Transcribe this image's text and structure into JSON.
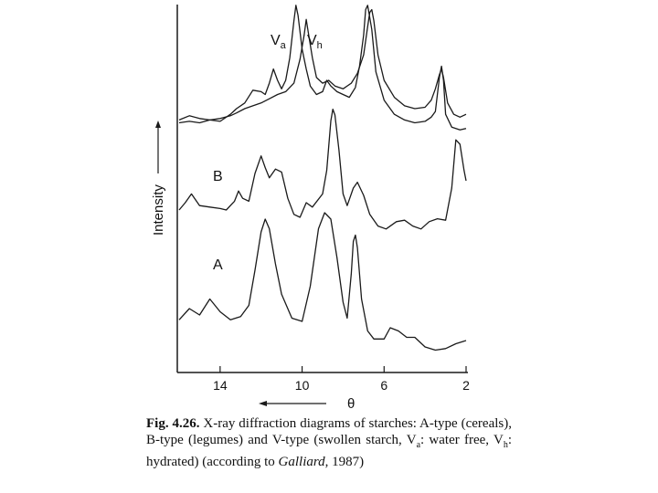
{
  "chart_data": {
    "type": "line",
    "ylabel": "Intensity",
    "xlabel": "θ",
    "x_direction": "decreasing to the right",
    "xlim": [
      16,
      2
    ],
    "x_ticks": [
      {
        "value": 14,
        "label": "14"
      },
      {
        "value": 10,
        "label": "10"
      },
      {
        "value": 6,
        "label": "6"
      },
      {
        "value": 2,
        "label": "2"
      }
    ],
    "panels": [
      {
        "label": "A",
        "series": [
          {
            "name": "A",
            "points": [
              [
                16,
                0.17
              ],
              [
                15.5,
                0.24
              ],
              [
                15.0,
                0.2
              ],
              [
                14.5,
                0.3
              ],
              [
                14.0,
                0.22
              ],
              [
                13.5,
                0.17
              ],
              [
                13.0,
                0.19
              ],
              [
                12.6,
                0.26
              ],
              [
                12.3,
                0.48
              ],
              [
                12.0,
                0.72
              ],
              [
                11.8,
                0.8
              ],
              [
                11.6,
                0.74
              ],
              [
                11.3,
                0.52
              ],
              [
                11.0,
                0.33
              ],
              [
                10.5,
                0.18
              ],
              [
                10.0,
                0.16
              ],
              [
                9.6,
                0.38
              ],
              [
                9.2,
                0.74
              ],
              [
                8.9,
                0.84
              ],
              [
                8.6,
                0.8
              ],
              [
                8.3,
                0.56
              ],
              [
                8.0,
                0.28
              ],
              [
                7.8,
                0.18
              ],
              [
                7.6,
                0.46
              ],
              [
                7.5,
                0.66
              ],
              [
                7.4,
                0.7
              ],
              [
                7.3,
                0.62
              ],
              [
                7.1,
                0.3
              ],
              [
                6.8,
                0.1
              ],
              [
                6.5,
                0.05
              ],
              [
                6.0,
                0.05
              ],
              [
                5.7,
                0.12
              ],
              [
                5.3,
                0.1
              ],
              [
                4.9,
                0.06
              ],
              [
                4.5,
                0.06
              ],
              [
                4.0,
                0.0
              ],
              [
                3.5,
                -0.02
              ],
              [
                3.0,
                -0.01
              ],
              [
                2.5,
                0.02
              ],
              [
                2.0,
                0.04
              ]
            ]
          }
        ]
      },
      {
        "label": "B",
        "series": [
          {
            "name": "B",
            "points": [
              [
                16,
                0.25
              ],
              [
                15.7,
                0.3
              ],
              [
                15.4,
                0.36
              ],
              [
                15.2,
                0.32
              ],
              [
                15.0,
                0.28
              ],
              [
                14.5,
                0.27
              ],
              [
                14.0,
                0.26
              ],
              [
                13.7,
                0.25
              ],
              [
                13.3,
                0.31
              ],
              [
                13.1,
                0.38
              ],
              [
                12.9,
                0.33
              ],
              [
                12.6,
                0.31
              ],
              [
                12.3,
                0.5
              ],
              [
                12.0,
                0.62
              ],
              [
                11.8,
                0.54
              ],
              [
                11.6,
                0.47
              ],
              [
                11.3,
                0.53
              ],
              [
                11.0,
                0.51
              ],
              [
                10.7,
                0.33
              ],
              [
                10.4,
                0.22
              ],
              [
                10.1,
                0.2
              ],
              [
                9.8,
                0.3
              ],
              [
                9.5,
                0.27
              ],
              [
                9.0,
                0.36
              ],
              [
                8.8,
                0.52
              ],
              [
                8.6,
                0.86
              ],
              [
                8.5,
                0.94
              ],
              [
                8.4,
                0.9
              ],
              [
                8.2,
                0.66
              ],
              [
                8.0,
                0.36
              ],
              [
                7.8,
                0.28
              ],
              [
                7.5,
                0.4
              ],
              [
                7.3,
                0.44
              ],
              [
                7.0,
                0.35
              ],
              [
                6.7,
                0.22
              ],
              [
                6.3,
                0.14
              ],
              [
                5.9,
                0.12
              ],
              [
                5.4,
                0.17
              ],
              [
                5.0,
                0.18
              ],
              [
                4.6,
                0.14
              ],
              [
                4.2,
                0.12
              ],
              [
                3.8,
                0.17
              ],
              [
                3.4,
                0.19
              ],
              [
                3.0,
                0.18
              ],
              [
                2.7,
                0.4
              ],
              [
                2.5,
                0.73
              ],
              [
                2.3,
                0.7
              ],
              [
                2.1,
                0.52
              ],
              [
                2.0,
                0.45
              ]
            ]
          }
        ]
      },
      {
        "label": "V",
        "series": [
          {
            "name": "Va",
            "points": [
              [
                16,
                0.1
              ],
              [
                15.5,
                0.11
              ],
              [
                15.0,
                0.1
              ],
              [
                14.5,
                0.12
              ],
              [
                14.0,
                0.11
              ],
              [
                13.5,
                0.16
              ],
              [
                13.2,
                0.2
              ],
              [
                12.8,
                0.24
              ],
              [
                12.4,
                0.33
              ],
              [
                12.0,
                0.32
              ],
              [
                11.8,
                0.3
              ],
              [
                11.6,
                0.38
              ],
              [
                11.4,
                0.48
              ],
              [
                11.2,
                0.4
              ],
              [
                11.0,
                0.34
              ],
              [
                10.8,
                0.4
              ],
              [
                10.6,
                0.56
              ],
              [
                10.4,
                0.82
              ],
              [
                10.3,
                0.93
              ],
              [
                10.2,
                0.86
              ],
              [
                10.0,
                0.62
              ],
              [
                9.8,
                0.48
              ],
              [
                9.6,
                0.36
              ],
              [
                9.3,
                0.3
              ],
              [
                9.0,
                0.32
              ],
              [
                8.8,
                0.4
              ],
              [
                8.6,
                0.36
              ],
              [
                8.3,
                0.32
              ],
              [
                8.0,
                0.3
              ],
              [
                7.7,
                0.28
              ],
              [
                7.4,
                0.35
              ],
              [
                7.2,
                0.5
              ],
              [
                7.0,
                0.72
              ],
              [
                6.9,
                0.9
              ],
              [
                6.8,
                0.93
              ],
              [
                6.6,
                0.76
              ],
              [
                6.4,
                0.46
              ],
              [
                6.0,
                0.26
              ],
              [
                5.5,
                0.16
              ],
              [
                5.0,
                0.12
              ],
              [
                4.5,
                0.1
              ],
              [
                4.0,
                0.11
              ],
              [
                3.7,
                0.14
              ],
              [
                3.5,
                0.18
              ],
              [
                3.3,
                0.42
              ],
              [
                3.2,
                0.5
              ],
              [
                3.1,
                0.4
              ],
              [
                3.0,
                0.16
              ],
              [
                2.7,
                0.07
              ],
              [
                2.3,
                0.05
              ],
              [
                2.0,
                0.06
              ]
            ]
          },
          {
            "name": "Vh",
            "points": [
              [
                16,
                0.12
              ],
              [
                15.5,
                0.15
              ],
              [
                15.0,
                0.13
              ],
              [
                14.5,
                0.12
              ],
              [
                14.0,
                0.13
              ],
              [
                13.5,
                0.15
              ],
              [
                13.2,
                0.17
              ],
              [
                12.8,
                0.2
              ],
              [
                12.4,
                0.22
              ],
              [
                12.0,
                0.24
              ],
              [
                11.6,
                0.27
              ],
              [
                11.2,
                0.3
              ],
              [
                10.8,
                0.32
              ],
              [
                10.4,
                0.38
              ],
              [
                10.1,
                0.55
              ],
              [
                9.9,
                0.72
              ],
              [
                9.8,
                0.83
              ],
              [
                9.7,
                0.74
              ],
              [
                9.5,
                0.56
              ],
              [
                9.3,
                0.42
              ],
              [
                9.0,
                0.38
              ],
              [
                8.7,
                0.4
              ],
              [
                8.4,
                0.36
              ],
              [
                8.0,
                0.34
              ],
              [
                7.6,
                0.38
              ],
              [
                7.3,
                0.45
              ],
              [
                7.0,
                0.58
              ],
              [
                6.8,
                0.78
              ],
              [
                6.7,
                0.88
              ],
              [
                6.6,
                0.9
              ],
              [
                6.5,
                0.82
              ],
              [
                6.3,
                0.58
              ],
              [
                6.0,
                0.4
              ],
              [
                5.5,
                0.28
              ],
              [
                5.0,
                0.22
              ],
              [
                4.5,
                0.2
              ],
              [
                4.0,
                0.21
              ],
              [
                3.7,
                0.26
              ],
              [
                3.5,
                0.34
              ],
              [
                3.3,
                0.44
              ],
              [
                3.2,
                0.48
              ],
              [
                3.1,
                0.42
              ],
              [
                2.9,
                0.24
              ],
              [
                2.6,
                0.16
              ],
              [
                2.3,
                0.14
              ],
              [
                2.0,
                0.16
              ]
            ]
          }
        ],
        "series_labels": [
          "Va",
          "Vh"
        ]
      }
    ]
  },
  "labels": {
    "ylabel": "Intensity",
    "theta": "θ",
    "panel_a": "A",
    "panel_b": "B",
    "va_base": "V",
    "va_sub": "a",
    "vh_base": "V",
    "vh_sub": "h"
  },
  "caption": {
    "fig_no": "Fig. 4.26.",
    "text_1": " X-ray diffraction diagrams of starches: A-type (cereals), B-type (legumes) and V-type (swollen starch, V",
    "sub_a": "a",
    "text_2": ": water free, V",
    "sub_h": "h",
    "text_3": ": hydrated) (according to ",
    "author": "Galliard",
    "text_4": ", 1987)"
  },
  "colors": {
    "line": "#1a1a1a",
    "background": "#ffffff"
  }
}
